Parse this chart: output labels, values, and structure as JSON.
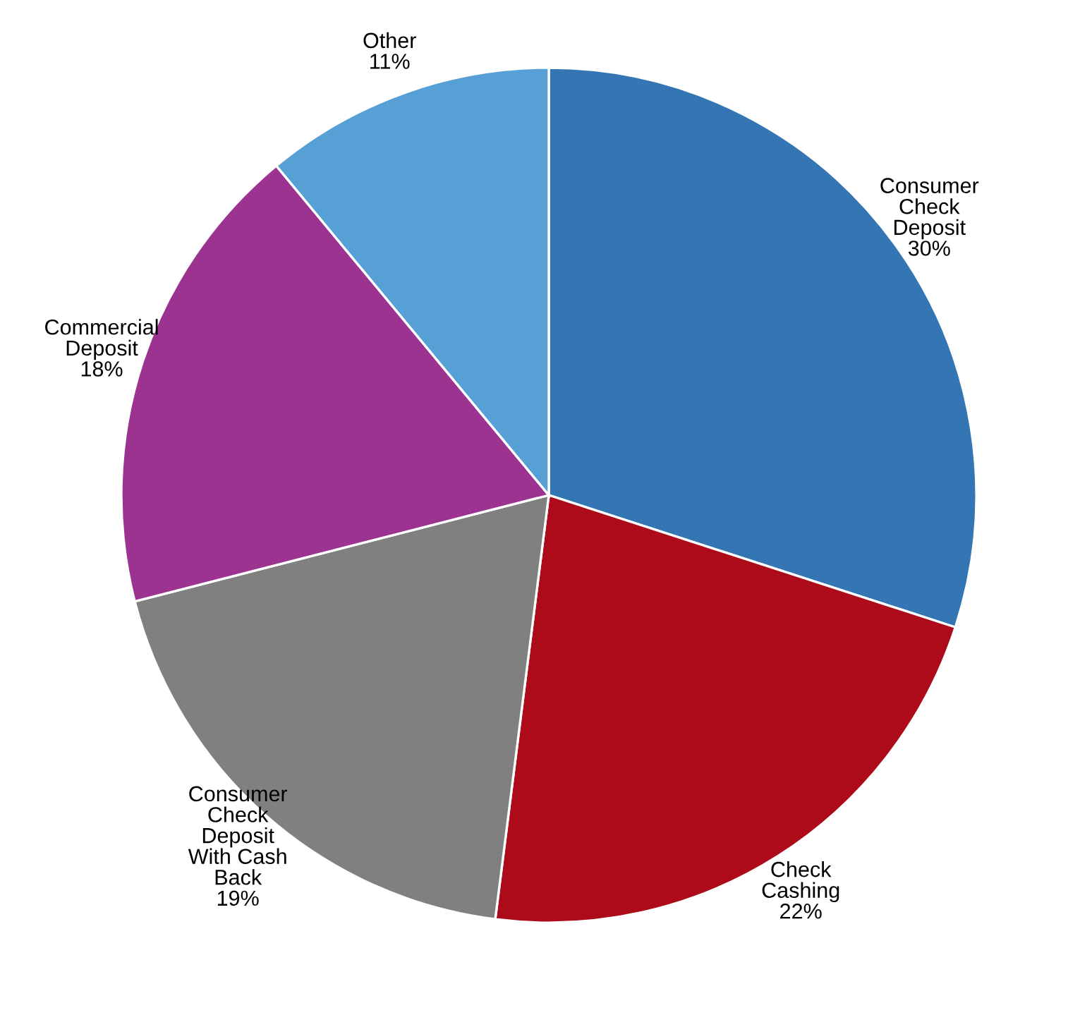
{
  "chart_data": {
    "type": "pie",
    "categories": [
      "Consumer\nCheck\nDeposit",
      "Check\nCashing",
      "Consumer\nCheck\nDeposit\nWith Cash\nBack",
      "Commercial\nDeposit",
      "Other"
    ],
    "values": [
      30,
      22,
      19,
      18,
      11
    ],
    "value_labels": [
      "30%",
      "22%",
      "19%",
      "18%",
      "11%"
    ],
    "colors": [
      "#3476b3",
      "#ad0b1a",
      "#808080",
      "#9c3391",
      "#56a0d6"
    ]
  }
}
